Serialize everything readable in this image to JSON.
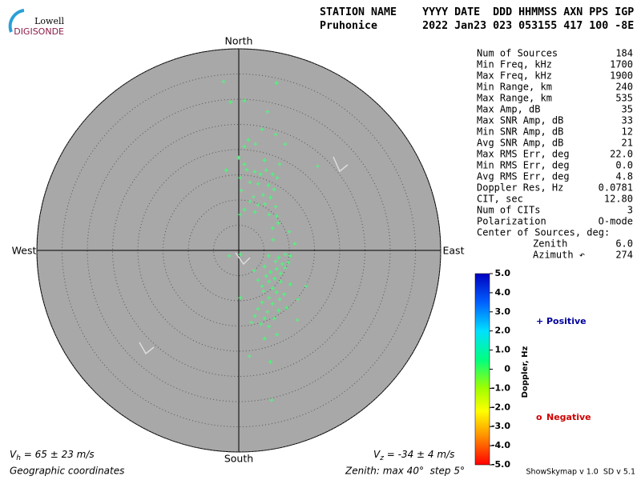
{
  "chart_data": {
    "type": "skymap",
    "logo": {
      "top": "Lowell",
      "bottom": "DIGISONDE"
    },
    "header": [
      "STATION NAME    YYYY DATE  DDD HHMMSS AXN PPS IGP",
      "Pruhonice       2022 Jan23 023 053155 417 100 -8E"
    ],
    "directions": {
      "north": "North",
      "south": "South",
      "west": "West",
      "east": "East"
    },
    "rlim": [
      0,
      40
    ],
    "rticks": [
      5,
      10,
      15,
      20,
      25,
      30,
      35,
      40
    ],
    "color": "#44ff77",
    "x": [
      -3.0,
      7.5,
      -1.6,
      1.1,
      5.7,
      4.6,
      7.3,
      1.9,
      1.1,
      3.3,
      9.2,
      -2.5,
      0,
      1.1,
      5.1,
      8.1,
      15.6,
      1.6,
      3.2,
      4.3,
      5.4,
      6.7,
      7.6,
      0.2,
      2.2,
      3.8,
      5.9,
      7.0,
      0.5,
      2.9,
      4.8,
      6.3,
      2.2,
      3.8,
      5.2,
      7.3,
      1.1,
      3.2,
      6.0,
      7.5,
      0.2,
      7.8,
      6.7,
      10.0,
      6.8,
      11.1,
      -1.9,
      0.3,
      5.9,
      7.9,
      9.2,
      10.2,
      7.3,
      8.6,
      9.8,
      5.1,
      7.5,
      9.2,
      6.3,
      8.3,
      3.0,
      5.4,
      7.1,
      3.8,
      6.0,
      8.3,
      10.2,
      4.6,
      6.7,
      13.3,
      4.9,
      7.5,
      9.0,
      0.3,
      6.0,
      8.1,
      11.7,
      4.6,
      6.7,
      9.5,
      3.8,
      5.7,
      7.9,
      3.2,
      5.1,
      7.0,
      11.6,
      2.5,
      4.4,
      6.0,
      7.6,
      5.1,
      2.1,
      6.3,
      6.5
    ],
    "y": [
      33.5,
      33.2,
      29.4,
      29.7,
      27.5,
      24.0,
      23.0,
      21.9,
      20.6,
      21.1,
      21.1,
      15.9,
      18.4,
      17.1,
      17.9,
      17.1,
      16.7,
      16.0,
      15.6,
      15.1,
      15.9,
      15.1,
      14.4,
      14.4,
      13.5,
      13.2,
      12.9,
      12.1,
      11.9,
      10.6,
      11.0,
      10.5,
      9.7,
      9.0,
      9.2,
      8.7,
      8.1,
      7.6,
      7.1,
      6.8,
      7.1,
      5.4,
      4.4,
      3.7,
      2.1,
      1.3,
      -1.1,
      -0.8,
      -1.1,
      -1.4,
      -0.8,
      -1.1,
      -2.2,
      -2.7,
      -2.4,
      -3.2,
      -3.7,
      -3.5,
      -4.3,
      -4.6,
      -4.0,
      -5.1,
      -5.6,
      -5.9,
      -6.2,
      -6.2,
      -6.7,
      -7.1,
      -7.5,
      -7.1,
      -8.1,
      -8.3,
      -8.7,
      -9.4,
      -9.4,
      -9.7,
      -9.7,
      -10.3,
      -10.6,
      -11.4,
      -11.6,
      -12.2,
      -11.9,
      -13.0,
      -13.5,
      -13.5,
      -13.8,
      -14.3,
      -14.6,
      -15.1,
      -16.7,
      -17.5,
      -21.0,
      -22.1,
      -29.7
    ],
    "stats": [
      [
        "Num of Sources",
        "184"
      ],
      [
        "Min Freq, kHz",
        "1700"
      ],
      [
        "Max Freq, kHz",
        "1900"
      ],
      [
        "Min Range, km",
        "240"
      ],
      [
        "Max Range, km",
        "535"
      ],
      [
        "Max Amp, dB",
        "35"
      ],
      [
        "Max SNR Amp, dB",
        "33"
      ],
      [
        "Min SNR Amp, dB",
        "12"
      ],
      [
        "Avg SNR Amp, dB",
        "21"
      ],
      [
        "Max RMS Err, deg",
        "22.0"
      ],
      [
        "Min RMS Err, deg",
        "0.0"
      ],
      [
        "Avg RMS Err, deg",
        "4.8"
      ],
      [
        "Doppler Res, Hz",
        "0.0781"
      ],
      [
        "CIT, sec",
        "12.80"
      ],
      [
        "Num of CITs",
        "3"
      ],
      [
        "Polarization",
        "O-mode"
      ]
    ],
    "center_title": "Center of Sources, deg:",
    "center": [
      [
        "Zenith",
        "6.0"
      ],
      [
        "Azimuth ↶",
        "274"
      ]
    ],
    "clim": [
      -5,
      5
    ],
    "cticks": [
      {
        "value": 5,
        "label": "5.0"
      },
      {
        "value": 4,
        "label": "4.0"
      },
      {
        "value": 3,
        "label": "3.0"
      },
      {
        "value": 2,
        "label": "2.0"
      },
      {
        "value": 1,
        "label": "1.0"
      },
      0,
      {
        "value": -1,
        "label": "-1.0"
      },
      {
        "value": -2,
        "label": "-2.0"
      },
      {
        "value": -3,
        "label": "-3.0"
      },
      {
        "value": -4,
        "label": "-4.0"
      },
      {
        "value": -5,
        "label": "-5.0"
      }
    ],
    "clabel": "Doppler, Hz",
    "legend": {
      "positive": {
        "symbol": "+",
        "label": "Positive"
      },
      "negative": {
        "symbol": "o",
        "label": "Negative"
      }
    },
    "vh": {
      "symbol": "V",
      "sub": "h",
      "text": " = 65 ± 23 m/s"
    },
    "vz": {
      "symbol": "V",
      "sub": "z",
      "text": " = -34 ± 4 m/s"
    },
    "coords": "Geographic coordinates",
    "zenith_note": "Zenith: max 40°  step 5°",
    "version": "ShowSkymap v 1.0  SD v 5.1"
  }
}
